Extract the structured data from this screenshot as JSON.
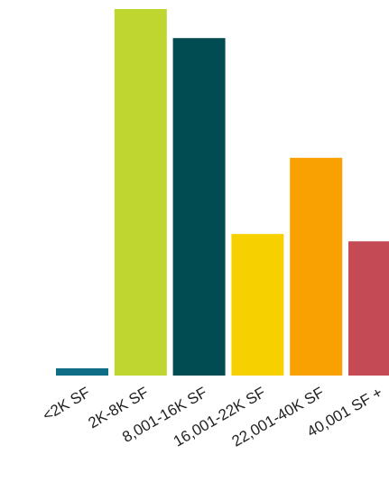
{
  "chart_data": {
    "type": "bar",
    "title": "",
    "xlabel": "",
    "ylabel": "",
    "categories": [
      "<2K SF",
      "2K-8K SF",
      "8,001-16K SF",
      "16,001-22K SF",
      "22,001-40K SF",
      "40,001 SF +"
    ],
    "values": [
      2,
      101,
      93,
      39,
      60,
      37
    ],
    "colors": [
      "#0e6e85",
      "#bfd630",
      "#014b52",
      "#f7d000",
      "#f9a100",
      "#c44a56"
    ],
    "ylim": [
      0,
      101
    ],
    "grid": false,
    "legend": "none"
  }
}
